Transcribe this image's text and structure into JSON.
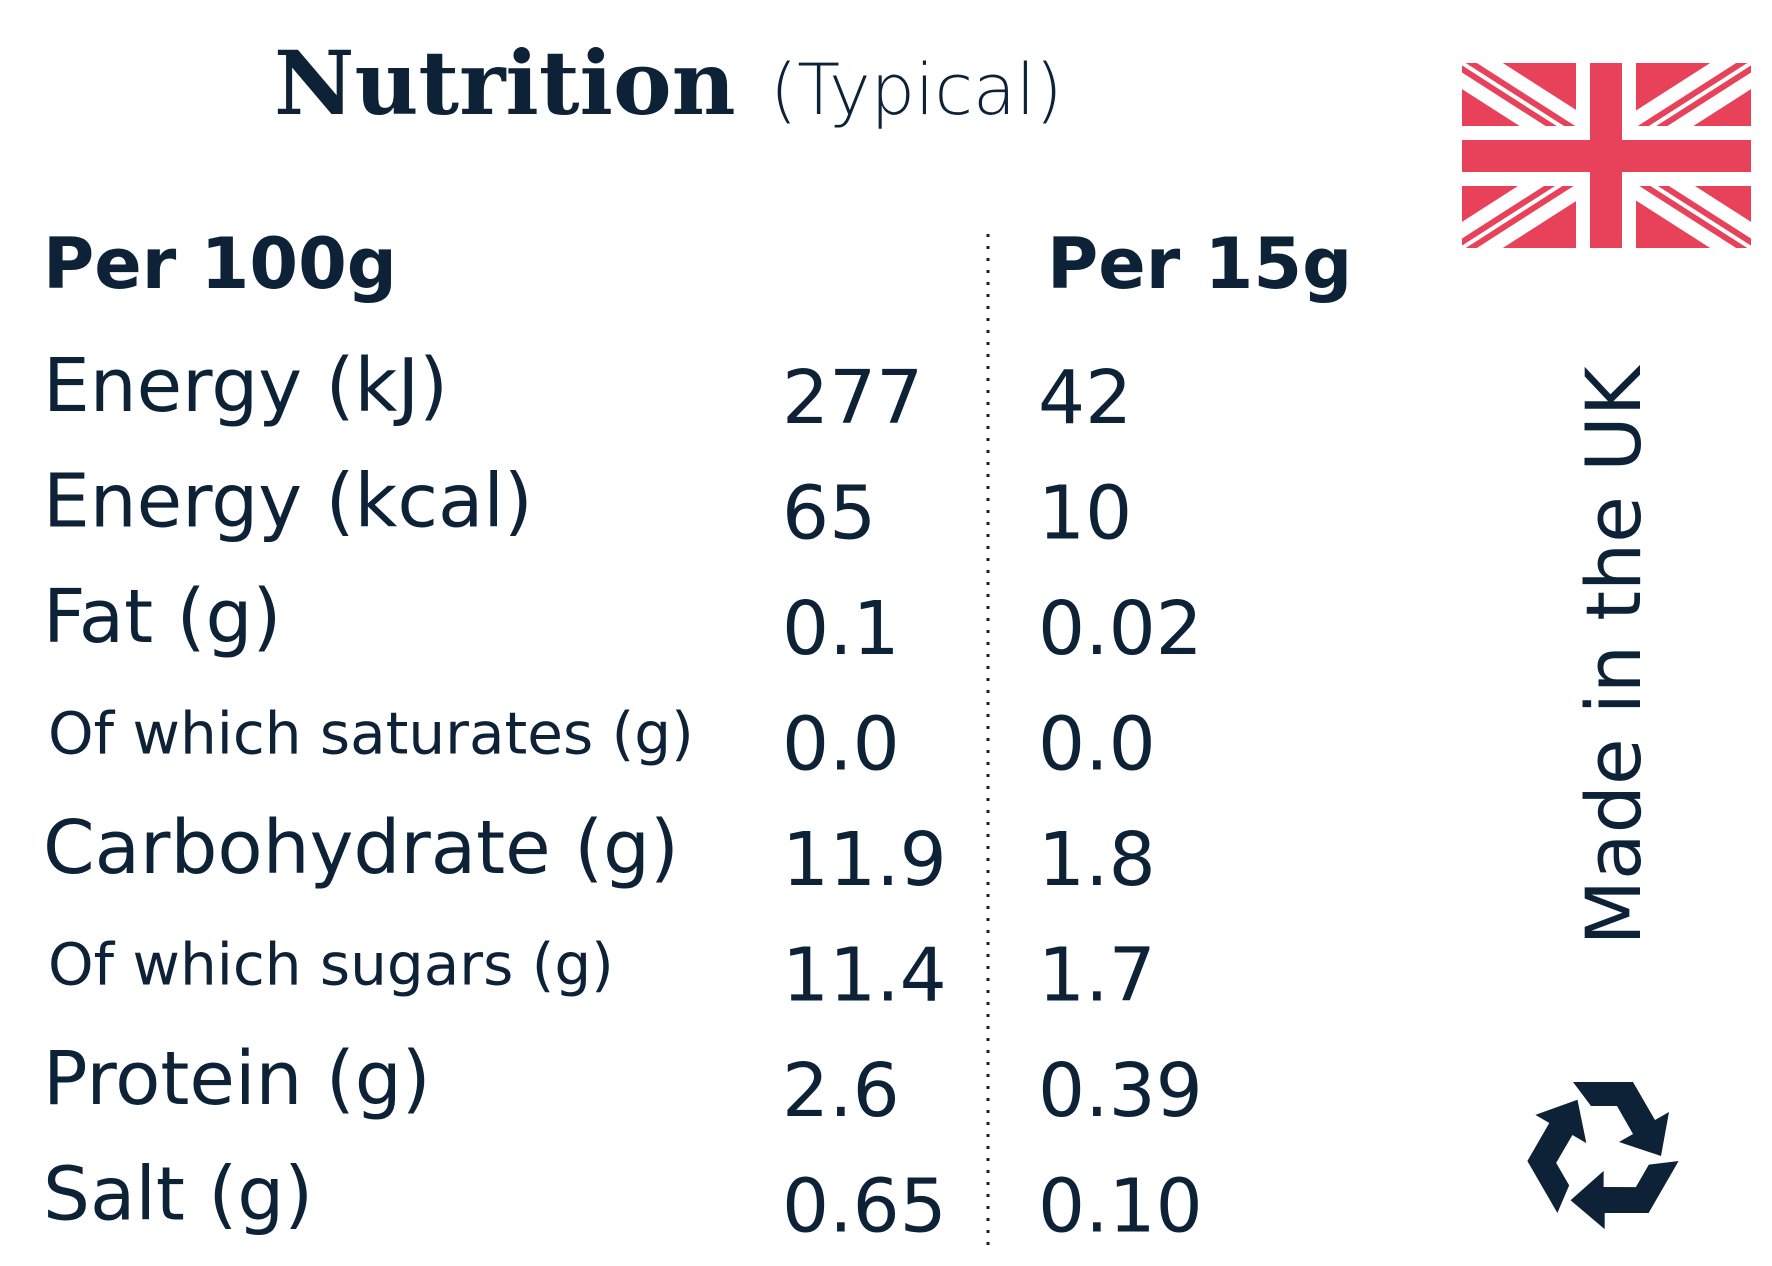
{
  "header": {
    "title": "Nutrition",
    "subtitle": "(Typical)"
  },
  "table": {
    "columns": [
      "Per 100g",
      "Per 15g"
    ],
    "rows": [
      [
        "Energy (kJ)",
        "277",
        "42"
      ],
      [
        "Energy (kcal)",
        "65",
        "10"
      ],
      [
        "Fat (g)",
        "0.1",
        "0.02"
      ],
      [
        "Of which saturates (g)",
        "0.0",
        "0.0"
      ],
      [
        "Carbohydrate (g)",
        "11.9",
        "1.8"
      ],
      [
        "Of which sugars (g)",
        "11.4",
        "1.7"
      ],
      [
        "Protein (g)",
        "2.6",
        "0.39"
      ],
      [
        "Salt (g)",
        "0.65",
        "0.10"
      ]
    ]
  },
  "origin": "Made in the UK"
}
